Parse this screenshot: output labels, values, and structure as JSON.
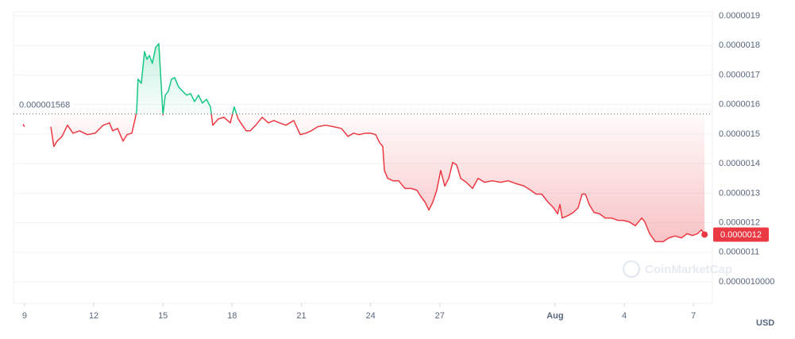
{
  "chart_data": {
    "type": "line",
    "watermark": "CoinMarketCap",
    "currency": "USD",
    "baseline": 1.568e-06,
    "up_color": "#16c784",
    "down_color": "#ea3943",
    "xlim": [
      -0.48,
      29.82
    ],
    "xticks": [
      {
        "value": 0,
        "label": "9"
      },
      {
        "value": 3,
        "label": "12"
      },
      {
        "value": 6,
        "label": "15"
      },
      {
        "value": 9,
        "label": "18"
      },
      {
        "value": 12,
        "label": "21"
      },
      {
        "value": 15,
        "label": "24"
      },
      {
        "value": 18,
        "label": "27"
      },
      {
        "value": 23,
        "label": "Aug"
      },
      {
        "value": 26,
        "label": "4"
      },
      {
        "value": 29,
        "label": "7"
      }
    ],
    "ylim": [
      9.276e-07,
      1.9134e-06
    ],
    "yticks": [
      1.9e-06,
      1.8e-06,
      1.7e-06,
      1.6e-06,
      1.5e-06,
      1.4e-06,
      1.3e-06,
      1.2e-06,
      1.1e-06,
      {
        "value": 1e-06,
        "label": "0.0000010000"
      }
    ],
    "grid": true,
    "x": [
      -0.07,
      0,
      1.0,
      1.14,
      1.27,
      1.41,
      1.62,
      1.86,
      2.1,
      2.38,
      2.72,
      3.06,
      3.41,
      3.68,
      3.82,
      4.03,
      4.27,
      4.44,
      4.65,
      4.79,
      4.86,
      4.92,
      5.06,
      5.2,
      5.3,
      5.41,
      5.54,
      5.68,
      5.82,
      5.89,
      6.0,
      6.1,
      6.23,
      6.37,
      6.51,
      6.68,
      6.85,
      7.03,
      7.2,
      7.37,
      7.54,
      7.71,
      7.89,
      8.06,
      8.16,
      8.4,
      8.64,
      8.92,
      9.09,
      9.26,
      9.44,
      9.61,
      9.78,
      10.02,
      10.3,
      10.57,
      10.81,
      11.05,
      11.33,
      11.67,
      11.95,
      12.19,
      12.43,
      12.71,
      13.05,
      13.4,
      13.74,
      14.02,
      14.26,
      14.5,
      14.77,
      15.01,
      15.22,
      15.39,
      15.53,
      15.6,
      15.74,
      15.98,
      16.22,
      16.49,
      16.77,
      17.01,
      17.18,
      17.36,
      17.53,
      17.7,
      17.87,
      18.04,
      18.22,
      18.39,
      18.56,
      18.73,
      18.91,
      19.15,
      19.42,
      19.66,
      19.94,
      20.28,
      20.63,
      20.97,
      21.32,
      21.66,
      21.94,
      22.18,
      22.42,
      22.69,
      22.93,
      23.11,
      23.21,
      23.31,
      23.55,
      23.79,
      24.0,
      24.17,
      24.31,
      24.48,
      24.69,
      24.93,
      25.17,
      25.45,
      25.72,
      25.96,
      26.21,
      26.48,
      26.76,
      26.89,
      27.1,
      27.34,
      27.69,
      27.93,
      28.2,
      28.48,
      28.72,
      28.96,
      29.17,
      29.34,
      29.48
    ],
    "values": [
      1.533e-06,
      1.525e-06,
      null,
      1.525e-06,
      1.458e-06,
      1.476e-06,
      1.492e-06,
      1.53e-06,
      1.503e-06,
      1.511e-06,
      1.498e-06,
      1.503e-06,
      1.53e-06,
      1.538e-06,
      1.511e-06,
      1.519e-06,
      1.476e-06,
      1.498e-06,
      1.503e-06,
      1.551e-06,
      1.578e-06,
      1.686e-06,
      1.672e-06,
      1.779e-06,
      1.753e-06,
      1.766e-06,
      1.739e-06,
      1.793e-06,
      1.806e-06,
      1.712e-06,
      1.565e-06,
      1.632e-06,
      1.645e-06,
      1.686e-06,
      1.691e-06,
      1.659e-06,
      1.645e-06,
      1.632e-06,
      1.637e-06,
      1.61e-06,
      1.632e-06,
      1.605e-06,
      1.618e-06,
      1.592e-06,
      1.53e-06,
      1.551e-06,
      1.557e-06,
      1.538e-06,
      1.592e-06,
      1.551e-06,
      1.53e-06,
      1.511e-06,
      1.511e-06,
      1.53e-06,
      1.557e-06,
      1.538e-06,
      1.546e-06,
      1.538e-06,
      1.53e-06,
      1.546e-06,
      1.498e-06,
      1.503e-06,
      1.511e-06,
      1.525e-06,
      1.53e-06,
      1.525e-06,
      1.519e-06,
      1.492e-06,
      1.503e-06,
      1.498e-06,
      1.503e-06,
      1.503e-06,
      1.498e-06,
      1.471e-06,
      1.458e-06,
      1.377e-06,
      1.35e-06,
      1.342e-06,
      1.342e-06,
      1.316e-06,
      1.316e-06,
      1.31e-06,
      1.289e-06,
      1.27e-06,
      1.243e-06,
      1.27e-06,
      1.31e-06,
      1.377e-06,
      1.324e-06,
      1.35e-06,
      1.404e-06,
      1.396e-06,
      1.35e-06,
      1.337e-06,
      1.316e-06,
      1.35e-06,
      1.337e-06,
      1.342e-06,
      1.337e-06,
      1.342e-06,
      1.332e-06,
      1.324e-06,
      1.31e-06,
      1.297e-06,
      1.297e-06,
      1.27e-06,
      1.251e-06,
      1.23e-06,
      1.262e-06,
      1.216e-06,
      1.224e-06,
      1.235e-06,
      1.251e-06,
      1.297e-06,
      1.297e-06,
      1.262e-06,
      1.235e-06,
      1.23e-06,
      1.216e-06,
      1.216e-06,
      1.208e-06,
      1.208e-06,
      1.203e-06,
      1.19e-06,
      1.216e-06,
      1.203e-06,
      1.163e-06,
      1.136e-06,
      1.136e-06,
      1.149e-06,
      1.155e-06,
      1.149e-06,
      1.163e-06,
      1.157e-06,
      1.163e-06,
      1.176e-06,
      1.16e-06
    ],
    "value_labels": [
      null,
      null,
      null,
      null,
      null,
      null,
      null,
      null,
      null,
      null,
      null,
      null,
      null,
      null,
      null,
      null,
      null,
      null,
      null,
      null,
      null,
      null,
      null,
      null,
      null,
      null,
      null,
      null,
      null,
      null,
      null,
      null,
      null,
      null,
      null,
      null,
      null,
      null,
      null,
      null,
      null,
      null,
      null,
      null,
      null,
      null,
      null,
      null,
      null,
      null,
      null,
      null,
      null,
      null,
      null,
      null,
      null,
      null,
      null,
      null,
      null,
      null,
      null,
      null,
      null,
      null,
      null,
      null,
      null,
      null,
      null,
      null,
      null,
      null,
      null,
      null,
      null,
      null,
      null,
      null,
      null,
      null,
      null,
      null,
      null,
      null,
      null,
      null,
      null,
      null,
      null,
      null,
      null,
      null,
      null,
      null,
      null,
      null,
      null,
      null,
      null,
      null,
      null,
      null,
      null,
      null,
      null,
      null,
      null,
      null,
      null,
      null,
      null,
      null,
      null,
      null,
      null,
      null,
      null,
      null,
      null,
      null,
      null,
      null,
      null,
      null,
      null,
      null,
      null,
      null,
      null,
      null,
      null,
      null,
      null,
      null,
      "0.0000012"
    ]
  }
}
